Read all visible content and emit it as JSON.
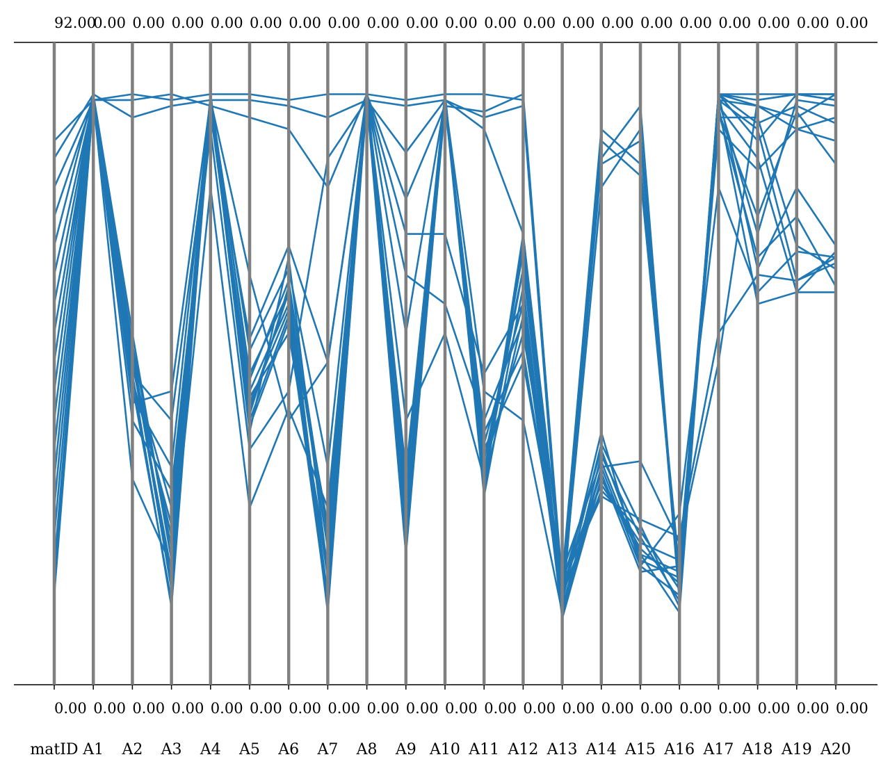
{
  "chart_data": {
    "type": "parallel-coordinates",
    "axes": [
      "matID",
      "A1",
      "A2",
      "A3",
      "A4",
      "A5",
      "A6",
      "A7",
      "A8",
      "A9",
      "A10",
      "A11",
      "A12",
      "A13",
      "A14",
      "A15",
      "A16",
      "A17",
      "A18",
      "A19",
      "A20"
    ],
    "top_tick_labels": [
      "92.00",
      "0.00",
      "0.00",
      "0.00",
      "0.00",
      "0.00",
      "0.00",
      "0.00",
      "0.00",
      "0.00",
      "0.00",
      "0.00",
      "0.00",
      "0.00",
      "0.00",
      "0.00",
      "0.00",
      "0.00",
      "0.00",
      "0.00",
      "0.00"
    ],
    "bottom_tick_labels": [
      "0.00",
      "0.00",
      "0.00",
      "0.00",
      "0.00",
      "0.00",
      "0.00",
      "0.00",
      "0.00",
      "0.00",
      "0.00",
      "0.00",
      "0.00",
      "0.00",
      "0.00",
      "0.00",
      "0.00",
      "0.00",
      "0.00",
      "0.00",
      "0.00"
    ],
    "normalized_range": [
      0,
      1
    ],
    "line_color": "#1f77b4",
    "axis_color": "#808080",
    "series": [
      {
        "values": [
          0.12,
          0.95,
          0.48,
          0.08,
          0.95,
          0.42,
          0.62,
          0.07,
          0.96,
          0.18,
          0.96,
          0.3,
          0.7,
          0.06,
          0.32,
          0.15,
          0.1,
          0.96,
          0.88,
          0.96,
          0.96
        ]
      },
      {
        "values": [
          0.2,
          0.95,
          0.52,
          0.12,
          0.93,
          0.45,
          0.6,
          0.1,
          0.95,
          0.22,
          0.95,
          0.33,
          0.66,
          0.08,
          0.3,
          0.18,
          0.12,
          0.95,
          0.72,
          0.95,
          0.94
        ]
      },
      {
        "values": [
          0.3,
          0.96,
          0.55,
          0.16,
          0.96,
          0.4,
          0.58,
          0.13,
          0.97,
          0.2,
          0.94,
          0.36,
          0.6,
          0.1,
          0.28,
          0.21,
          0.11,
          0.96,
          0.66,
          0.8,
          0.7
        ]
      },
      {
        "values": [
          0.4,
          0.95,
          0.53,
          0.18,
          0.94,
          0.44,
          0.55,
          0.15,
          0.96,
          0.25,
          0.96,
          0.29,
          0.58,
          0.12,
          0.35,
          0.17,
          0.14,
          0.94,
          0.85,
          0.62,
          0.69
        ]
      },
      {
        "values": [
          0.5,
          0.96,
          0.5,
          0.2,
          0.95,
          0.48,
          0.62,
          0.18,
          0.95,
          0.28,
          0.95,
          0.32,
          0.55,
          0.14,
          0.33,
          0.16,
          0.13,
          0.95,
          0.9,
          0.64,
          0.68
        ]
      },
      {
        "values": [
          0.6,
          0.95,
          0.47,
          0.22,
          0.96,
          0.47,
          0.64,
          0.2,
          0.96,
          0.3,
          0.94,
          0.38,
          0.52,
          0.11,
          0.31,
          0.14,
          0.15,
          0.92,
          0.92,
          0.7,
          0.66
        ]
      },
      {
        "values": [
          0.7,
          0.96,
          0.49,
          0.25,
          0.93,
          0.43,
          0.59,
          0.22,
          0.97,
          0.26,
          0.95,
          0.35,
          0.5,
          0.13,
          0.29,
          0.19,
          0.16,
          0.93,
          0.68,
          0.75,
          0.63
        ]
      },
      {
        "values": [
          0.8,
          0.95,
          0.51,
          0.11,
          0.95,
          0.41,
          0.63,
          0.09,
          0.96,
          0.19,
          0.96,
          0.31,
          0.69,
          0.07,
          0.34,
          0.2,
          0.09,
          0.96,
          0.94,
          0.92,
          0.96
        ]
      },
      {
        "values": [
          0.88,
          0.95,
          0.46,
          0.09,
          0.96,
          0.39,
          0.57,
          0.08,
          0.95,
          0.17,
          0.95,
          0.28,
          0.72,
          0.09,
          0.36,
          0.22,
          0.08,
          0.96,
          0.96,
          0.96,
          0.95
        ]
      },
      {
        "values": [
          0.15,
          0.95,
          0.96,
          0.95,
          0.96,
          0.96,
          0.95,
          0.96,
          0.96,
          0.95,
          0.96,
          0.96,
          0.95,
          0.12,
          0.85,
          0.94,
          0.1,
          0.96,
          0.95,
          0.96,
          0.95
        ]
      },
      {
        "values": [
          0.25,
          0.96,
          0.92,
          0.94,
          0.95,
          0.95,
          0.94,
          0.92,
          0.95,
          0.86,
          0.95,
          0.92,
          0.94,
          0.09,
          0.8,
          0.9,
          0.09,
          0.95,
          0.94,
          0.9,
          0.88
        ]
      },
      {
        "values": [
          0.35,
          0.95,
          0.95,
          0.96,
          0.94,
          0.92,
          0.9,
          0.8,
          0.96,
          0.78,
          0.94,
          0.93,
          0.96,
          0.11,
          0.84,
          0.88,
          0.11,
          0.94,
          0.6,
          0.62,
          0.62
        ]
      },
      {
        "values": [
          0.45,
          0.96,
          0.43,
          0.45,
          0.95,
          0.65,
          0.4,
          0.5,
          0.96,
          0.55,
          0.95,
          0.9,
          0.72,
          0.13,
          0.9,
          0.84,
          0.14,
          0.9,
          0.83,
          0.9,
          0.92
        ]
      },
      {
        "values": [
          0.55,
          0.95,
          0.4,
          0.28,
          0.9,
          0.35,
          0.45,
          0.85,
          0.95,
          0.94,
          0.95,
          0.45,
          0.4,
          0.07,
          0.88,
          0.82,
          0.13,
          0.93,
          0.75,
          0.93,
          0.84
        ]
      },
      {
        "values": [
          0.65,
          0.95,
          0.3,
          0.15,
          0.8,
          0.25,
          0.42,
          0.25,
          0.95,
          0.4,
          0.55,
          0.3,
          0.66,
          0.1,
          0.38,
          0.15,
          0.24,
          0.8,
          0.62,
          0.69,
          0.68
        ]
      },
      {
        "values": [
          0.75,
          0.95,
          0.44,
          0.32,
          0.95,
          0.52,
          0.66,
          0.32,
          0.96,
          0.72,
          0.72,
          0.48,
          0.6,
          0.12,
          0.27,
          0.23,
          0.2,
          0.55,
          0.65,
          0.64,
          0.67
        ]
      },
      {
        "values": [
          0.85,
          0.96,
          0.48,
          0.4,
          0.92,
          0.54,
          0.7,
          0.5,
          0.96,
          0.65,
          0.6,
          0.4,
          0.57,
          0.08,
          0.32,
          0.33,
          0.19,
          0.5,
          0.95,
          0.96,
          0.96
        ]
      },
      {
        "values": [
          0.1,
          0.95,
          0.5,
          0.14,
          0.95,
          0.38,
          0.68,
          0.14,
          0.95,
          0.31,
          0.96,
          0.27,
          0.63,
          0.06,
          0.3,
          0.17,
          0.07,
          0.96,
          0.91,
          0.94,
          0.91
        ]
      }
    ]
  }
}
